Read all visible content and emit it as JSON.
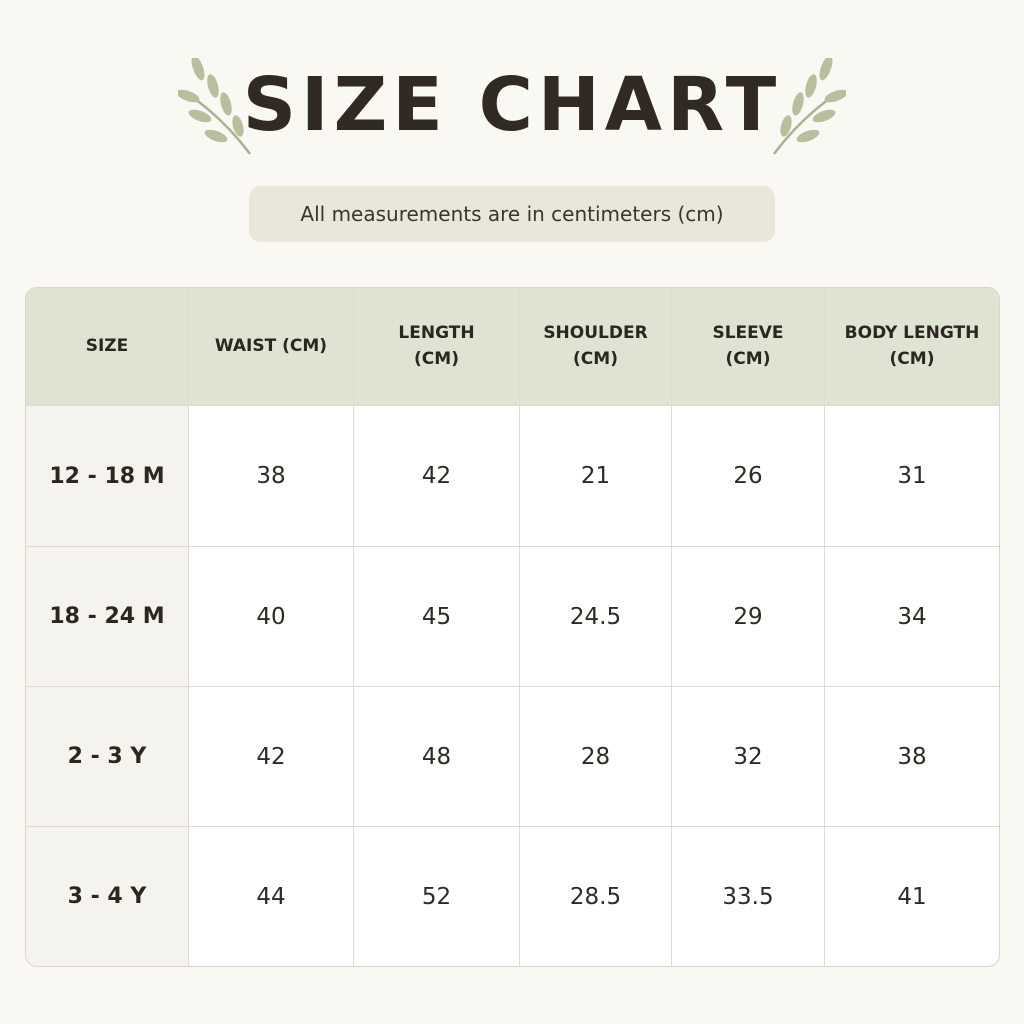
{
  "header": {
    "title": "SIZE CHART",
    "subtitle": "All measurements are in centimeters (cm)"
  },
  "table": {
    "columns": [
      "SIZE",
      "WAIST (CM)",
      "LENGTH (CM)",
      "SHOULDER (CM)",
      "SLEEVE (CM)",
      "BODY LENGTH (CM)"
    ],
    "rows": [
      [
        "12 - 18 M",
        38,
        42,
        21,
        26,
        31
      ],
      [
        "18 - 24 M",
        40,
        45,
        24.5,
        29,
        34
      ],
      [
        "2 - 3 Y",
        42,
        48,
        28,
        32,
        38
      ],
      [
        "3 - 4 Y",
        44,
        52,
        28.5,
        33.5,
        41
      ]
    ]
  }
}
